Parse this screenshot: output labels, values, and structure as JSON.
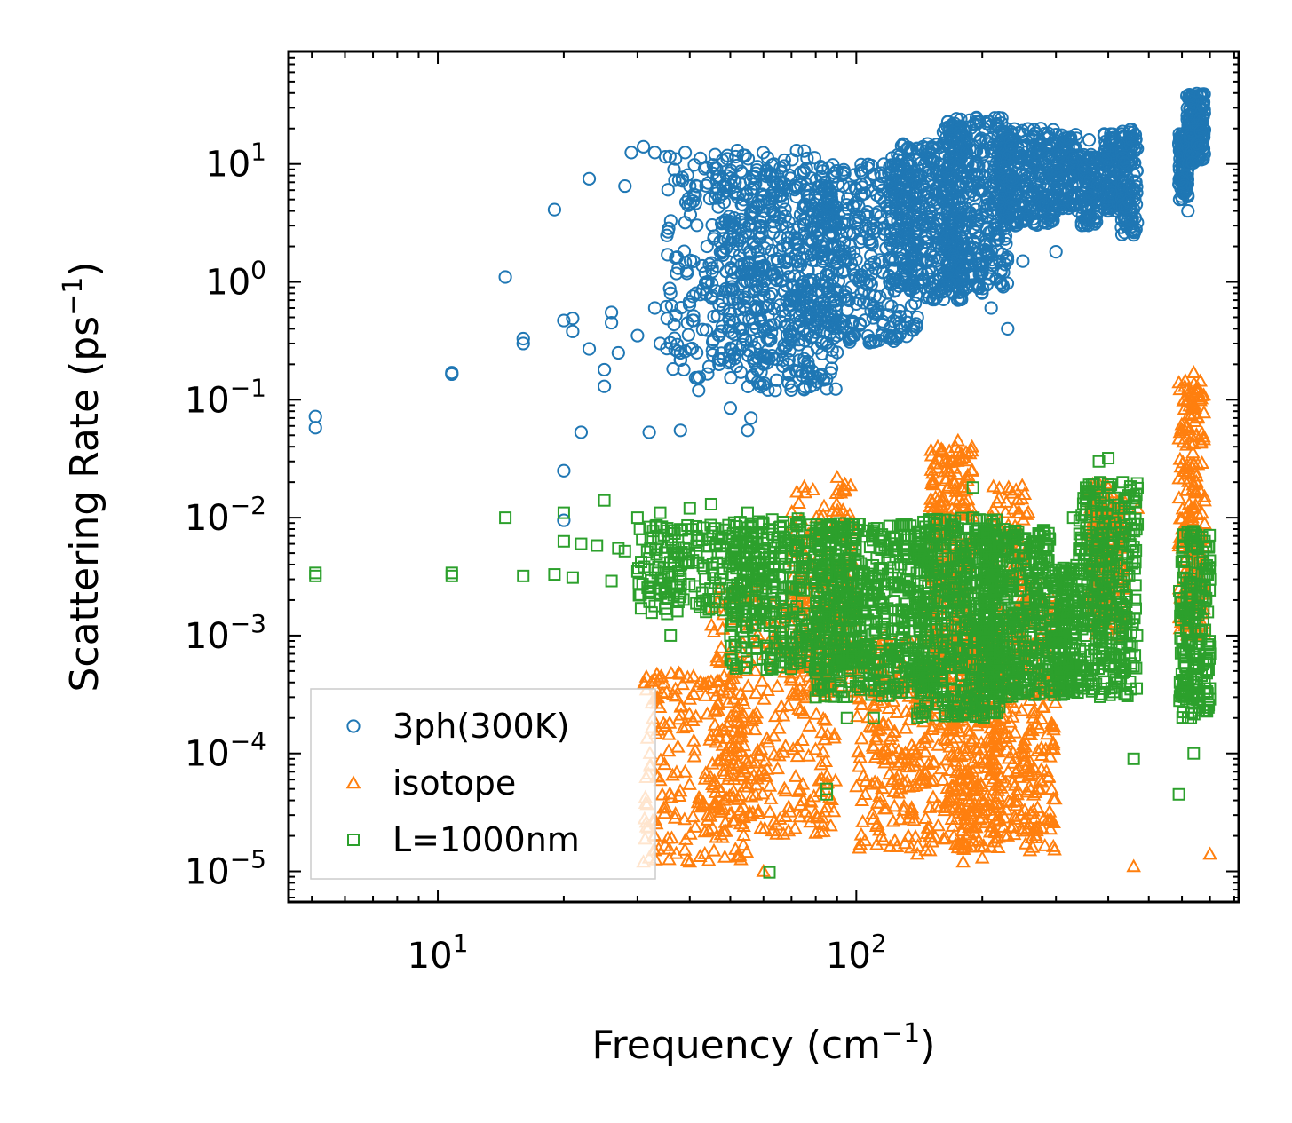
{
  "chart_data": {
    "type": "scatter",
    "xscale": "log",
    "yscale": "log",
    "xlim": [
      4.4,
      820
    ],
    "ylim": [
      5.5e-06,
      90
    ],
    "xlabel": {
      "text": "Frequency (cm",
      "sup": "−1",
      "tail": ")"
    },
    "ylabel": {
      "text": "Scattering Rate (ps",
      "sup": "−1",
      "tail": ")"
    },
    "xticks": [
      {
        "value": 10,
        "base": "10",
        "exp": "1"
      },
      {
        "value": 100,
        "base": "10",
        "exp": "2"
      }
    ],
    "yticks": [
      {
        "value": 10,
        "base": "10",
        "exp": "1"
      },
      {
        "value": 1,
        "base": "10",
        "exp": "0"
      },
      {
        "value": 0.1,
        "base": "10",
        "exp": "−1"
      },
      {
        "value": 0.01,
        "base": "10",
        "exp": "−2"
      },
      {
        "value": 0.001,
        "base": "10",
        "exp": "−3"
      },
      {
        "value": 0.0001,
        "base": "10",
        "exp": "−4"
      },
      {
        "value": 1e-05,
        "base": "10",
        "exp": "−5"
      }
    ],
    "legend_position": "lower-left",
    "series": [
      {
        "name": "3ph(300K)",
        "marker": "circle",
        "color": "#1f77b4",
        "points": [
          [
            5.1,
            0.058
          ],
          [
            5.1,
            0.072
          ],
          [
            10.8,
            0.165
          ],
          [
            10.8,
            0.17
          ],
          [
            14.5,
            1.1
          ],
          [
            16,
            0.3
          ],
          [
            16,
            0.33
          ],
          [
            19,
            4.1
          ],
          [
            20,
            0.47
          ],
          [
            20,
            0.025
          ],
          [
            20,
            0.0095
          ],
          [
            21,
            0.38
          ],
          [
            21,
            0.49
          ],
          [
            22,
            0.053
          ],
          [
            23,
            0.27
          ],
          [
            23,
            7.5
          ],
          [
            25,
            0.13
          ],
          [
            25,
            0.18
          ],
          [
            26,
            0.45
          ],
          [
            26,
            0.55
          ],
          [
            27,
            0.25
          ],
          [
            28,
            6.5
          ],
          [
            29,
            12.5
          ],
          [
            30,
            0.35
          ],
          [
            31,
            14
          ],
          [
            32,
            0.053
          ],
          [
            33,
            0.6
          ],
          [
            33,
            12.5
          ],
          [
            34,
            0.3
          ],
          [
            35,
            11.5
          ],
          [
            36,
            0.8
          ],
          [
            37,
            1.6
          ],
          [
            38,
            0.25
          ],
          [
            38,
            0.055
          ],
          [
            39,
            12.5
          ],
          [
            40,
            6.5
          ],
          [
            42,
            0.12
          ],
          [
            44,
            2
          ],
          [
            46,
            12
          ],
          [
            47,
            0.2
          ],
          [
            50,
            0.085
          ],
          [
            52,
            13
          ],
          [
            55,
            0.055
          ],
          [
            56,
            0.07
          ],
          [
            58,
            9.5
          ],
          [
            60,
            0.2
          ],
          [
            64,
            0.12
          ],
          [
            70,
            0.13
          ],
          [
            72,
            13
          ],
          [
            75,
            0.6
          ],
          [
            78,
            0.15
          ],
          [
            82,
            0.16
          ],
          [
            90,
            0.35
          ],
          [
            100,
            0.65
          ],
          [
            110,
            0.6
          ],
          [
            120,
            0.35
          ],
          [
            140,
            0.5
          ],
          [
            160,
            0.9
          ],
          [
            175,
            0.7
          ],
          [
            200,
            1.2
          ],
          [
            210,
            0.6
          ],
          [
            220,
            1.5
          ],
          [
            230,
            0.4
          ],
          [
            240,
            3
          ],
          [
            250,
            1.5
          ],
          [
            270,
            4
          ],
          [
            280,
            4.5
          ],
          [
            300,
            1.8
          ],
          [
            330,
            14
          ],
          [
            360,
            16
          ],
          [
            380,
            4
          ],
          [
            400,
            4
          ],
          [
            430,
            18
          ],
          [
            460,
            2.5
          ],
          [
            590,
            15
          ],
          [
            620,
            4
          ]
        ],
        "segments": [
          {
            "xmin": 35,
            "xmax": 60,
            "ymin": 0.15,
            "ymax": 12,
            "n": 200
          },
          {
            "xmin": 45,
            "xmax": 80,
            "ymin": 0.2,
            "ymax": 13,
            "n": 250
          },
          {
            "xmin": 55,
            "xmax": 90,
            "ymin": 0.12,
            "ymax": 10,
            "n": 300
          },
          {
            "xmin": 80,
            "xmax": 140,
            "ymin": 0.3,
            "ymax": 10,
            "n": 400
          },
          {
            "xmin": 120,
            "xmax": 180,
            "ymin": 0.7,
            "ymax": 15,
            "n": 350
          },
          {
            "xmin": 160,
            "xmax": 230,
            "ymin": 0.8,
            "ymax": 25,
            "n": 400
          },
          {
            "xmin": 220,
            "xmax": 300,
            "ymin": 3,
            "ymax": 20,
            "n": 300
          },
          {
            "xmin": 300,
            "xmax": 340,
            "ymin": 4,
            "ymax": 18,
            "n": 120
          },
          {
            "xmin": 345,
            "xmax": 380,
            "ymin": 3,
            "ymax": 12,
            "n": 110
          },
          {
            "xmin": 390,
            "xmax": 430,
            "ymin": 4,
            "ymax": 18,
            "n": 120
          },
          {
            "xmin": 430,
            "xmax": 470,
            "ymin": 2.5,
            "ymax": 20,
            "n": 120
          },
          {
            "xmin": 590,
            "xmax": 620,
            "ymin": 5,
            "ymax": 18,
            "n": 90
          },
          {
            "xmin": 615,
            "xmax": 680,
            "ymin": 10,
            "ymax": 40,
            "n": 160
          }
        ]
      },
      {
        "name": "isotope",
        "marker": "triangle",
        "color": "#ff7f0e",
        "points": [
          [
            31,
            1.2e-05
          ],
          [
            32,
            1.3e-05
          ],
          [
            33,
            1.5e-05
          ],
          [
            33,
            2e-05
          ],
          [
            35,
            3.5e-05
          ],
          [
            40,
            1.2e-05
          ],
          [
            60,
            1e-05
          ],
          [
            85,
            3.5e-05
          ],
          [
            90,
            0.022
          ],
          [
            100,
            0.0003
          ],
          [
            140,
            1.4e-05
          ],
          [
            150,
            1.5e-05
          ],
          [
            175,
            0.045
          ],
          [
            180,
            1.2e-05
          ],
          [
            200,
            1.3e-05
          ],
          [
            230,
            2e-05
          ],
          [
            260,
            1.5e-05
          ],
          [
            270,
            0.003
          ],
          [
            400,
            0.018
          ],
          [
            460,
            1.1e-05
          ],
          [
            470,
            0.012
          ],
          [
            590,
            0.14
          ],
          [
            640,
            0.17
          ],
          [
            700,
            1.4e-05
          ],
          [
            640,
            0.008
          ],
          [
            600,
            0.008
          ]
        ],
        "segments": [
          {
            "xmin": 31,
            "xmax": 55,
            "ymin": 1.2e-05,
            "ymax": 0.0005,
            "n": 200
          },
          {
            "xmin": 45,
            "xmax": 90,
            "ymin": 2e-05,
            "ymax": 0.003,
            "n": 300
          },
          {
            "xmin": 70,
            "xmax": 100,
            "ymin": 0.0003,
            "ymax": 0.02,
            "n": 200
          },
          {
            "xmin": 100,
            "xmax": 170,
            "ymin": 1.5e-05,
            "ymax": 0.001,
            "n": 300
          },
          {
            "xmin": 150,
            "xmax": 190,
            "ymin": 0.0005,
            "ymax": 0.04,
            "n": 250
          },
          {
            "xmin": 170,
            "xmax": 220,
            "ymin": 1.5e-05,
            "ymax": 0.001,
            "n": 300
          },
          {
            "xmin": 210,
            "xmax": 260,
            "ymin": 2e-05,
            "ymax": 0.02,
            "n": 200
          },
          {
            "xmin": 250,
            "xmax": 300,
            "ymin": 1.5e-05,
            "ymax": 0.003,
            "n": 150
          },
          {
            "xmin": 360,
            "xmax": 440,
            "ymin": 0.001,
            "ymax": 0.02,
            "n": 200
          },
          {
            "xmin": 590,
            "xmax": 680,
            "ymin": 0.001,
            "ymax": 0.15,
            "n": 200
          }
        ]
      },
      {
        "name": "L=1000nm",
        "marker": "square",
        "color": "#2ca02c",
        "points": [
          [
            5.1,
            0.0032
          ],
          [
            5.1,
            0.0034
          ],
          [
            10.8,
            0.0032
          ],
          [
            10.8,
            0.0034
          ],
          [
            14.5,
            0.01
          ],
          [
            16,
            0.0032
          ],
          [
            19,
            0.0033
          ],
          [
            20,
            0.0063
          ],
          [
            20,
            0.011
          ],
          [
            21,
            0.0031
          ],
          [
            22,
            0.006
          ],
          [
            24,
            0.0058
          ],
          [
            25,
            0.014
          ],
          [
            26,
            0.0029
          ],
          [
            27,
            0.0055
          ],
          [
            28,
            0.0052
          ],
          [
            30,
            0.0035
          ],
          [
            30,
            0.01
          ],
          [
            32,
            0.0045
          ],
          [
            34,
            0.011
          ],
          [
            36,
            0.001
          ],
          [
            38,
            0.003
          ],
          [
            40,
            0.012
          ],
          [
            45,
            0.013
          ],
          [
            50,
            0.001
          ],
          [
            55,
            0.011
          ],
          [
            60,
            0.0035
          ],
          [
            62,
            9.8e-06
          ],
          [
            80,
            0.0003
          ],
          [
            85,
            5e-05
          ],
          [
            85,
            4.5e-05
          ],
          [
            95,
            0.0002
          ],
          [
            110,
            0.0002
          ],
          [
            140,
            0.0002
          ],
          [
            160,
            0.0024
          ],
          [
            190,
            0.018
          ],
          [
            220,
            0.001
          ],
          [
            240,
            0.006
          ],
          [
            330,
            0.01
          ],
          [
            380,
            0.03
          ],
          [
            400,
            0.032
          ],
          [
            430,
            0.012
          ],
          [
            460,
            9e-05
          ],
          [
            590,
            4.5e-05
          ],
          [
            630,
            0.0002
          ],
          [
            640,
            0.0001
          ],
          [
            700,
            0.003
          ]
        ],
        "segments": [
          {
            "xmin": 30,
            "xmax": 60,
            "ymin": 0.0015,
            "ymax": 0.009,
            "n": 200
          },
          {
            "xmin": 50,
            "xmax": 100,
            "ymin": 0.0005,
            "ymax": 0.01,
            "n": 400
          },
          {
            "xmin": 80,
            "xmax": 150,
            "ymin": 0.0003,
            "ymax": 0.009,
            "n": 500
          },
          {
            "xmin": 140,
            "xmax": 220,
            "ymin": 0.0002,
            "ymax": 0.01,
            "n": 500
          },
          {
            "xmin": 200,
            "xmax": 290,
            "ymin": 0.0003,
            "ymax": 0.008,
            "n": 400
          },
          {
            "xmin": 290,
            "xmax": 340,
            "ymin": 0.0003,
            "ymax": 0.004,
            "n": 200
          },
          {
            "xmin": 340,
            "xmax": 470,
            "ymin": 0.0003,
            "ymax": 0.02,
            "n": 350
          },
          {
            "xmin": 590,
            "xmax": 700,
            "ymin": 0.0002,
            "ymax": 0.008,
            "n": 200
          }
        ]
      }
    ]
  }
}
